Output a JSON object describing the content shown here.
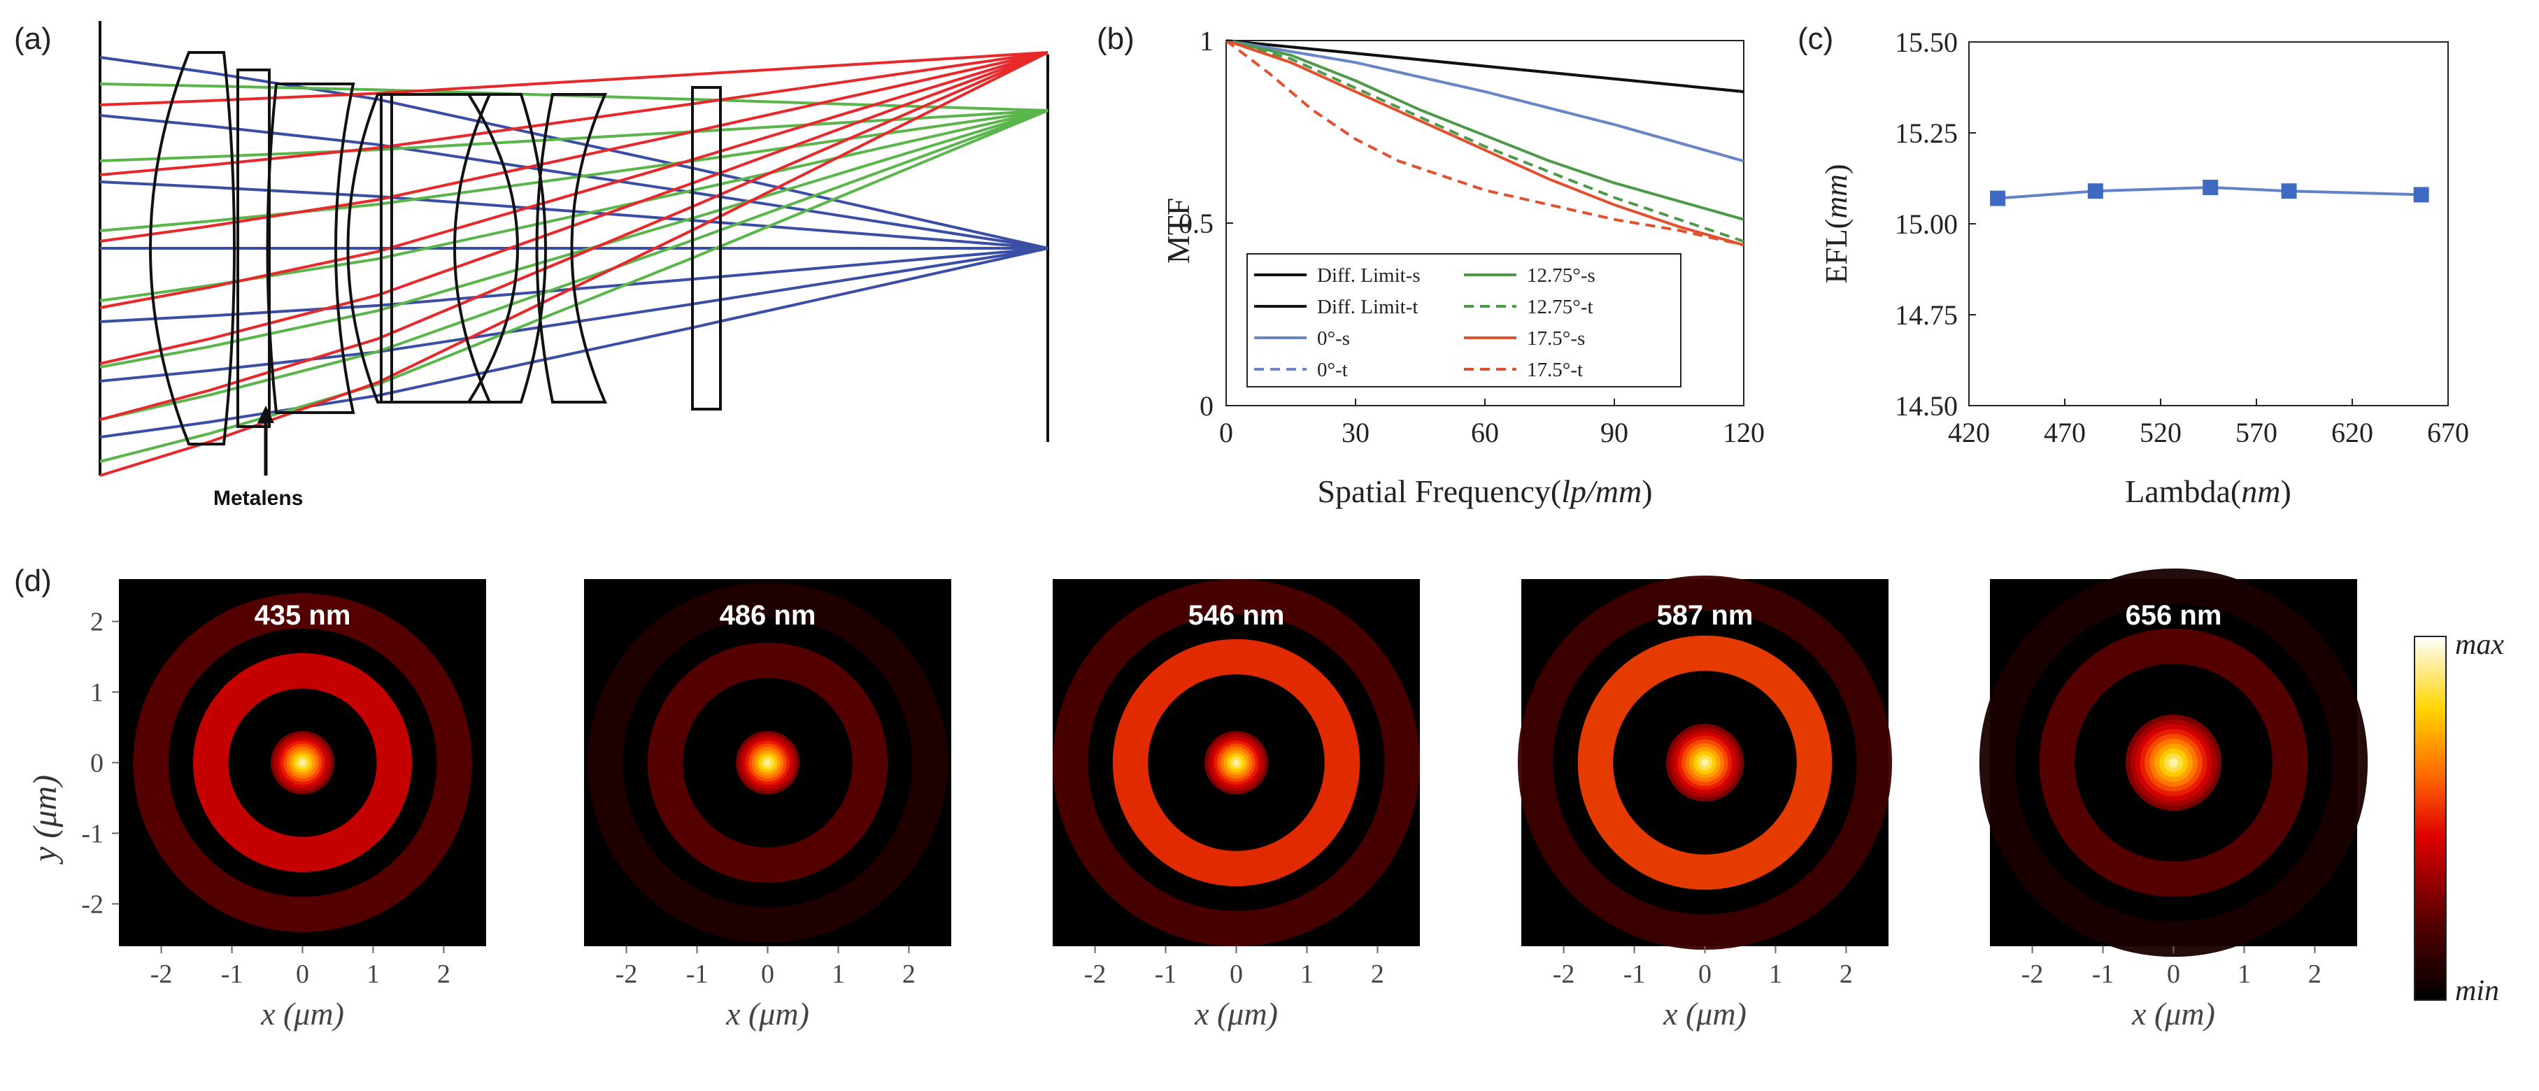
{
  "figure": {
    "panel_labels": [
      "(a)",
      "(b)",
      "(c)",
      "(d)"
    ]
  },
  "colors": {
    "blue": "#3a4ea5",
    "green": "#5ab54b",
    "red": "#e8282b",
    "mtf_black": "#111111",
    "mtf_blue": "#6b86c6",
    "mtf_green": "#4e9a4a",
    "mtf_red": "#e0522f",
    "efl_line": "#5f83c9",
    "efl_marker": "#3e6bc1"
  },
  "panel_a": {
    "annotation": "Metalens"
  },
  "chart_data": [
    {
      "type": "line",
      "panel": "(b)",
      "xlabel_main": "Spatial Frequency(",
      "xlabel_italic": "lp/mm",
      "xlabel_close": ")",
      "ylabel": "MTF",
      "xlim": [
        0,
        120
      ],
      "ylim": [
        0,
        1
      ],
      "xticks": [
        "0",
        "30",
        "60",
        "90",
        "120"
      ],
      "yticks": [
        "0",
        "0.5",
        "1"
      ],
      "legend_position": "bottom-left",
      "series": [
        {
          "name": "Diff. Limit-s",
          "color": "#111111",
          "dash": "solid",
          "x": [
            0,
            120
          ],
          "y": [
            1.0,
            0.86
          ]
        },
        {
          "name": "Diff. Limit-t",
          "color": "#111111",
          "dash": "solid",
          "x": [
            0,
            120
          ],
          "y": [
            1.0,
            0.86
          ]
        },
        {
          "name": "0°-s",
          "color": "#6b86c6",
          "dash": "solid",
          "x": [
            0,
            30,
            60,
            90,
            120
          ],
          "y": [
            1.0,
            0.94,
            0.86,
            0.77,
            0.67
          ]
        },
        {
          "name": "0°-t",
          "color": "#6b86c6",
          "dash": "dashed",
          "x": [
            0,
            30,
            60,
            90,
            120
          ],
          "y": [
            1.0,
            0.94,
            0.86,
            0.77,
            0.67
          ]
        },
        {
          "name": "12.75°-s",
          "color": "#4e9a4a",
          "dash": "solid",
          "x": [
            0,
            15,
            30,
            45,
            60,
            75,
            90,
            105,
            120
          ],
          "y": [
            1.0,
            0.96,
            0.89,
            0.81,
            0.74,
            0.67,
            0.61,
            0.56,
            0.51
          ]
        },
        {
          "name": "12.75°-t",
          "color": "#4e9a4a",
          "dash": "dashed",
          "x": [
            0,
            15,
            30,
            45,
            60,
            75,
            90,
            105,
            120
          ],
          "y": [
            1.0,
            0.95,
            0.87,
            0.79,
            0.71,
            0.64,
            0.57,
            0.51,
            0.45
          ]
        },
        {
          "name": "17.5°-s",
          "color": "#e0522f",
          "dash": "solid",
          "x": [
            0,
            15,
            30,
            45,
            60,
            75,
            90,
            105,
            120
          ],
          "y": [
            1.0,
            0.94,
            0.86,
            0.78,
            0.7,
            0.62,
            0.55,
            0.49,
            0.44
          ]
        },
        {
          "name": "17.5°-t",
          "color": "#e0522f",
          "dash": "dashed",
          "x": [
            0,
            10,
            20,
            30,
            40,
            50,
            60,
            75,
            90,
            105,
            120
          ],
          "y": [
            1.0,
            0.91,
            0.81,
            0.73,
            0.67,
            0.63,
            0.59,
            0.55,
            0.51,
            0.48,
            0.44
          ]
        }
      ]
    },
    {
      "type": "line",
      "panel": "(c)",
      "xlabel_main": "Lambda(",
      "xlabel_italic": "nm",
      "xlabel_close": ")",
      "ylabel_main": "EFL(",
      "ylabel_italic": "mm",
      "ylabel_close": ")",
      "xlim": [
        420,
        670
      ],
      "ylim": [
        14.5,
        15.5
      ],
      "xticks": [
        "420",
        "470",
        "520",
        "570",
        "620",
        "670"
      ],
      "yticks": [
        "14.50",
        "14.75",
        "15.00",
        "15.25",
        "15.50"
      ],
      "series": [
        {
          "x": [
            435,
            486,
            546,
            587,
            656
          ],
          "y": [
            15.07,
            15.09,
            15.1,
            15.09,
            15.08
          ],
          "color": "#5f83c9",
          "marker": "square"
        }
      ]
    },
    {
      "type": "heatmap",
      "panel": "(d)",
      "colorbar_max": "max",
      "colorbar_min": "min",
      "x_label": "x (μm)",
      "y_label": "y (μm)",
      "xticks": [
        "-2",
        "-1",
        "0",
        "1",
        "2"
      ],
      "yticks": [
        "2",
        "1",
        "0",
        "-1",
        "-2"
      ],
      "maps": [
        {
          "label": "435 nm",
          "core": 0.45,
          "ring": 1.3,
          "ring_strength": 0.42,
          "ring2": 2.15,
          "ring2_strength": 0.22
        },
        {
          "label": "486 nm",
          "core": 0.45,
          "ring": 1.45,
          "ring_strength": 0.22,
          "ring2": 2.3,
          "ring2_strength": 0.08
        },
        {
          "label": "546 nm",
          "core": 0.45,
          "ring": 1.5,
          "ring_strength": 0.52,
          "ring2": 2.35,
          "ring2_strength": 0.18
        },
        {
          "label": "587 nm",
          "core": 0.55,
          "ring": 1.55,
          "ring_strength": 0.55,
          "ring2": 2.4,
          "ring2_strength": 0.15
        },
        {
          "label": "656 nm",
          "core": 0.68,
          "ring": 1.65,
          "ring_strength": 0.22,
          "ring2": 2.5,
          "ring2_strength": 0.06
        }
      ]
    }
  ]
}
